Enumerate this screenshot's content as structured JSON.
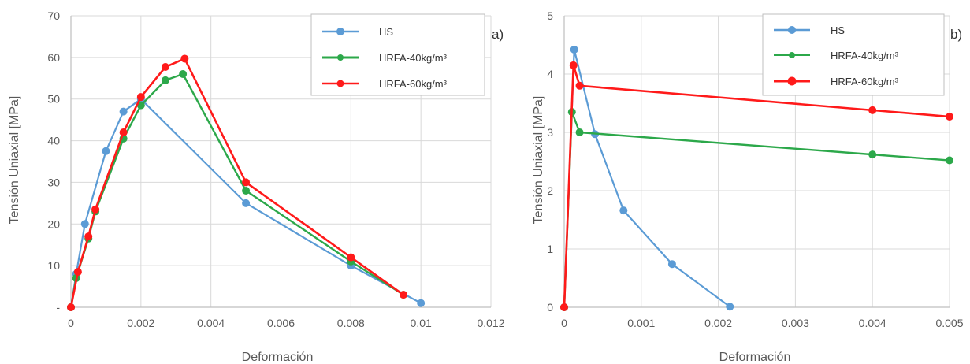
{
  "colors": {
    "HS": "#5b9bd5",
    "HRFA-40": "#2ca84a",
    "HRFA-60": "#ff1a1a",
    "grid": "#d9d9d9",
    "axis": "#bfbfbf"
  },
  "chart_data": [
    {
      "type": "line",
      "panel_label": "a)",
      "xlabel": "Deformación",
      "ylabel": "Tensión Uniaxial [MPa]",
      "xlim": [
        0,
        0.012
      ],
      "ylim": [
        0,
        70
      ],
      "xticks": [
        0,
        0.002,
        0.004,
        0.006,
        0.008,
        0.01,
        0.012
      ],
      "xtick_labels": [
        "0",
        "0.002",
        "0.004",
        "0.006",
        "0.008",
        "0.01",
        "0.012"
      ],
      "yticks": [
        0,
        10,
        20,
        30,
        40,
        50,
        60,
        70
      ],
      "ytick_labels": [
        "-",
        "10",
        "20",
        "30",
        "40",
        "50",
        "60",
        "70"
      ],
      "grid": true,
      "legend": "top-right",
      "series": [
        {
          "name": "HS",
          "color_key": "HS",
          "x": [
            0,
            0.00015,
            0.0004,
            0.001,
            0.0015,
            0.002,
            0.005,
            0.008,
            0.01
          ],
          "y": [
            0,
            8,
            20,
            37.5,
            47,
            50,
            25,
            10,
            1
          ]
        },
        {
          "name": "HRFA-40kg/m³",
          "color_key": "HRFA-40",
          "x": [
            0,
            0.00015,
            0.0005,
            0.0007,
            0.0015,
            0.002,
            0.0027,
            0.0032,
            0.005,
            0.008,
            0.0095
          ],
          "y": [
            0,
            7,
            16.5,
            23,
            40.5,
            48.5,
            54.5,
            56,
            28,
            11,
            3
          ]
        },
        {
          "name": "HRFA-60kg/m³",
          "color_key": "HRFA-60",
          "x": [
            0,
            0.0002,
            0.0005,
            0.0007,
            0.0015,
            0.002,
            0.0027,
            0.00325,
            0.005,
            0.008,
            0.0095
          ],
          "y": [
            0,
            8.5,
            17,
            23.5,
            42,
            50.5,
            57.7,
            59.7,
            30,
            12,
            3
          ]
        }
      ]
    },
    {
      "type": "line",
      "panel_label": "b)",
      "xlabel": "Deformación",
      "ylabel": "Tensión Uniaxial [MPa]",
      "xlim": [
        0,
        0.005
      ],
      "ylim": [
        0,
        5
      ],
      "xticks": [
        0,
        0.001,
        0.002,
        0.003,
        0.004,
        0.005
      ],
      "xtick_labels": [
        "0",
        "0.001",
        "0.002",
        "0.003",
        "0.004",
        "0.005"
      ],
      "yticks": [
        0,
        1,
        2,
        3,
        4,
        5
      ],
      "ytick_labels": [
        "0",
        "1",
        "2",
        "3",
        "4",
        "5"
      ],
      "grid": true,
      "legend": "top-right",
      "series": [
        {
          "name": "HS",
          "color_key": "HS",
          "x": [
            0,
            0.00013,
            0.0004,
            0.00077,
            0.0014,
            0.00215
          ],
          "y": [
            0,
            4.42,
            2.97,
            1.66,
            0.74,
            0.01
          ]
        },
        {
          "name": "HRFA-40kg/m³",
          "color_key": "HRFA-40",
          "x": [
            0,
            0.0001,
            0.0002,
            0.004,
            0.005
          ],
          "y": [
            0,
            3.35,
            3.0,
            2.62,
            2.52
          ]
        },
        {
          "name": "HRFA-60kg/m³",
          "color_key": "HRFA-60",
          "x": [
            0,
            0.00012,
            0.0002,
            0.004,
            0.005
          ],
          "y": [
            0,
            4.15,
            3.8,
            3.38,
            3.27
          ]
        }
      ]
    }
  ]
}
